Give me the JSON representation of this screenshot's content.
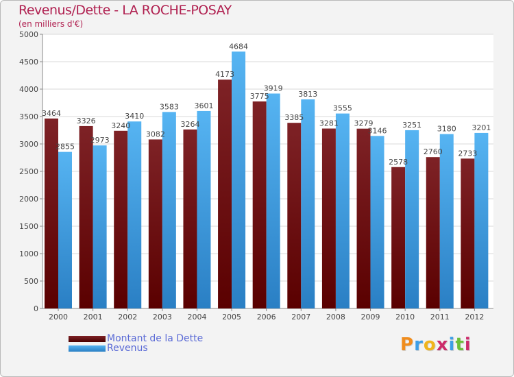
{
  "chart_data": {
    "type": "bar",
    "title": "Revenus/Dette - LA ROCHE-POSAY",
    "subtitle": "(en milliers d'€)",
    "categories": [
      "2000",
      "2001",
      "2002",
      "2003",
      "2004",
      "2005",
      "2006",
      "2007",
      "2008",
      "2009",
      "2010",
      "2011",
      "2012"
    ],
    "series": [
      {
        "name": "Montant de la Dette",
        "color": "#7a1a1a",
        "values": [
          3464,
          3326,
          3240,
          3082,
          3264,
          4173,
          3775,
          3385,
          3281,
          3279,
          2578,
          2760,
          2733
        ]
      },
      {
        "name": "Revenus",
        "color": "#3d9ee6",
        "values": [
          2855,
          2973,
          3410,
          3583,
          3601,
          4684,
          3919,
          3813,
          3555,
          3146,
          3251,
          3180,
          3201
        ]
      }
    ],
    "ylim": [
      0,
      5000
    ],
    "yticks": [
      0,
      500,
      1000,
      1500,
      2000,
      2500,
      3000,
      3500,
      4000,
      4500,
      5000
    ],
    "grid": true,
    "legend_position": "bottom-left"
  },
  "legend": {
    "debt_label": "Montant de la Dette",
    "revenue_label": "Revenus"
  },
  "logo_text": "Proxiti"
}
